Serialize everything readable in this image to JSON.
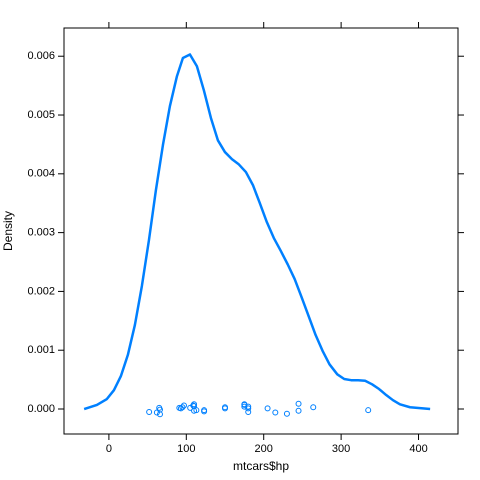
{
  "chart_data": {
    "type": "density",
    "xlabel": "mtcars$hp",
    "ylabel": "Density",
    "color": "#0080ff",
    "xlim": [
      -58,
      451
    ],
    "ylim": [
      -0.000425,
      0.00648
    ],
    "xticks": [
      0,
      100,
      200,
      300,
      400
    ],
    "yticks": [
      {
        "value": 0,
        "label": "0.000"
      },
      {
        "value": 0.001,
        "label": "0.001"
      },
      {
        "value": 0.002,
        "label": "0.002"
      },
      {
        "value": 0.003,
        "label": "0.003"
      },
      {
        "value": 0.004,
        "label": "0.004"
      },
      {
        "value": 0.005,
        "label": "0.005"
      },
      {
        "value": 0.006,
        "label": "0.006"
      }
    ],
    "density": {
      "x": [
        -32,
        -15.5,
        -2.6,
        6.5,
        15.5,
        24.5,
        33.6,
        42.6,
        51.7,
        60.7,
        69.8,
        78.8,
        87.9,
        95.6,
        104.7,
        113.7,
        122.7,
        131.8,
        140.8,
        149.9,
        158.9,
        167.9,
        177,
        186,
        195,
        204,
        213,
        222,
        231,
        240,
        249,
        258,
        267,
        276,
        285,
        295,
        304,
        313,
        322,
        331,
        340,
        349,
        358,
        367,
        376,
        389,
        415
      ],
      "y": [
        0,
        7e-05,
        0.00017,
        0.00032,
        0.00056,
        0.00092,
        0.00143,
        0.00209,
        0.00287,
        0.00372,
        0.00449,
        0.00515,
        0.00566,
        0.00597,
        0.00603,
        0.00583,
        0.00542,
        0.00495,
        0.00457,
        0.00437,
        0.00425,
        0.00416,
        0.00403,
        0.00381,
        0.0035,
        0.00318,
        0.00291,
        0.00269,
        0.00246,
        0.00221,
        0.0019,
        0.00158,
        0.00126,
        0.00099,
        0.00076,
        0.00059,
        0.00051,
        0.00049,
        0.00049,
        0.00048,
        0.00042,
        0.00034,
        0.00024,
        0.00015,
        8e-05,
        3e-05,
        0
      ]
    },
    "points": {
      "x": [
        110,
        110,
        93,
        110,
        175,
        105,
        245,
        62,
        95,
        123,
        123,
        180,
        180,
        180,
        205,
        215,
        230,
        66,
        52,
        65,
        97,
        150,
        150,
        245,
        175,
        66,
        91,
        113,
        264,
        175,
        335,
        109
      ],
      "y": [
        5e-05,
        -3e-05,
        1e-05,
        8e-05,
        7e-05,
        2e-05,
        9e-05,
        -6e-05,
        3e-05,
        -4e-05,
        -2e-05,
        1e-05,
        -5e-05,
        4e-05,
        1e-05,
        -6e-05,
        -8e-05,
        -9e-05,
        -5e-05,
        2e-05,
        6e-05,
        3e-05,
        1e-05,
        -3e-05,
        4e-05,
        -1e-05,
        2e-05,
        -2e-05,
        3e-05,
        8e-05,
        -2e-05,
        6e-05
      ]
    }
  }
}
